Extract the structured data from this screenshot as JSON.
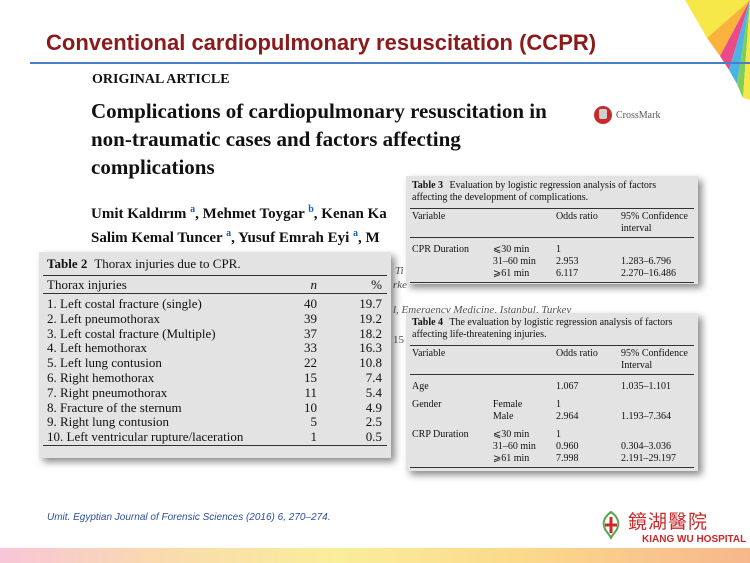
{
  "slide": {
    "title": "Conventional cardiopulmonary resuscitation (CCPR)"
  },
  "article": {
    "type_label": "ORIGINAL ARTICLE",
    "title": "Complications of cardiopulmonary resuscitation in non-traumatic cases and factors affecting complications",
    "crossmark": "CrossMark",
    "authors_line1": {
      "a1": "Umit Kaldırım ",
      "a1_sup": "a",
      "a2": ", Mehmet Toygar ",
      "a2_sup": "b",
      "a3": ", Kenan Ka"
    },
    "authors_line2": {
      "a1": "Salim Kemal Tuncer ",
      "a1_sup": "a",
      "a2": ", Yusuf Emrah Eyi ",
      "a2_sup": "a",
      "a3": ", M"
    },
    "partial_text": {
      "p1": "Ti",
      "p2": "rke",
      "p3": "l, Emergency Medicine, Istanbul, Turkey",
      "p4": "15"
    }
  },
  "table2": {
    "label": "Table 2",
    "caption": "Thorax injuries due to CPR.",
    "headers": [
      "Thorax injuries",
      "n",
      "%"
    ],
    "rows": [
      [
        "1. Left costal fracture (single)",
        "40",
        "19.7"
      ],
      [
        "2. Left pneumothorax",
        "39",
        "19.2"
      ],
      [
        "3. Left costal fracture (Multiple)",
        "37",
        "18.2"
      ],
      [
        "4. Left hemothorax",
        "33",
        "16.3"
      ],
      [
        "5. Left lung contusion",
        "22",
        "10.8"
      ],
      [
        "6. Right hemothorax",
        "15",
        "7.4"
      ],
      [
        "7. Right pneumothorax",
        "11",
        "5.4"
      ],
      [
        "8. Fracture of the sternum",
        "10",
        "4.9"
      ],
      [
        "9. Right lung contusion",
        "5",
        "2.5"
      ],
      [
        "10. Left ventricular rupture/laceration",
        "1",
        "0.5"
      ]
    ]
  },
  "table3": {
    "label": "Table 3",
    "caption": "Evaluation by logistic regression analysis of factors affecting the development of complications.",
    "headers": [
      "Variable",
      "Odds ratio",
      "95% Confidence interval"
    ],
    "rows": [
      [
        "CPR Duration",
        "⩽30 min",
        "1",
        ""
      ],
      [
        "",
        "31–60 min",
        "2.953",
        "1.283–6.796"
      ],
      [
        "",
        "⩾61 min",
        "6.117",
        "2.270–16.486"
      ]
    ]
  },
  "table4": {
    "label": "Table 4",
    "caption": "The evaluation by logistic regression analysis of factors affecting life-threatening injuries.",
    "headers": [
      "Variable",
      "Odds ratio",
      "95% Confidence Interval"
    ],
    "rows": [
      [
        "Age",
        "",
        "1.067",
        "1.035–1.101"
      ],
      [
        "Gender",
        "Female",
        "1",
        ""
      ],
      [
        "",
        "Male",
        "2.964",
        "1.193–7.364"
      ],
      [
        "CRP Duration",
        "⩽30 min",
        "1",
        ""
      ],
      [
        "",
        "31–60 min",
        "0.960",
        "0.304–3.036"
      ],
      [
        "",
        "⩾61 min",
        "7.998",
        "2.191–29.197"
      ]
    ]
  },
  "citation": "Umit. Egyptian Journal of Forensic Sciences (2016) 6, 270–274.",
  "logo": {
    "name_cn": "鏡湖醫院",
    "name_en": "KIANG WU HOSPITAL"
  },
  "colors": {
    "title_red": "#8b1a1a",
    "rule_blue": "#4a7fc8",
    "table_gray": "#e3e3e3",
    "citation_blue": "#2d4f9e",
    "logo_red": "#c82a2a"
  }
}
